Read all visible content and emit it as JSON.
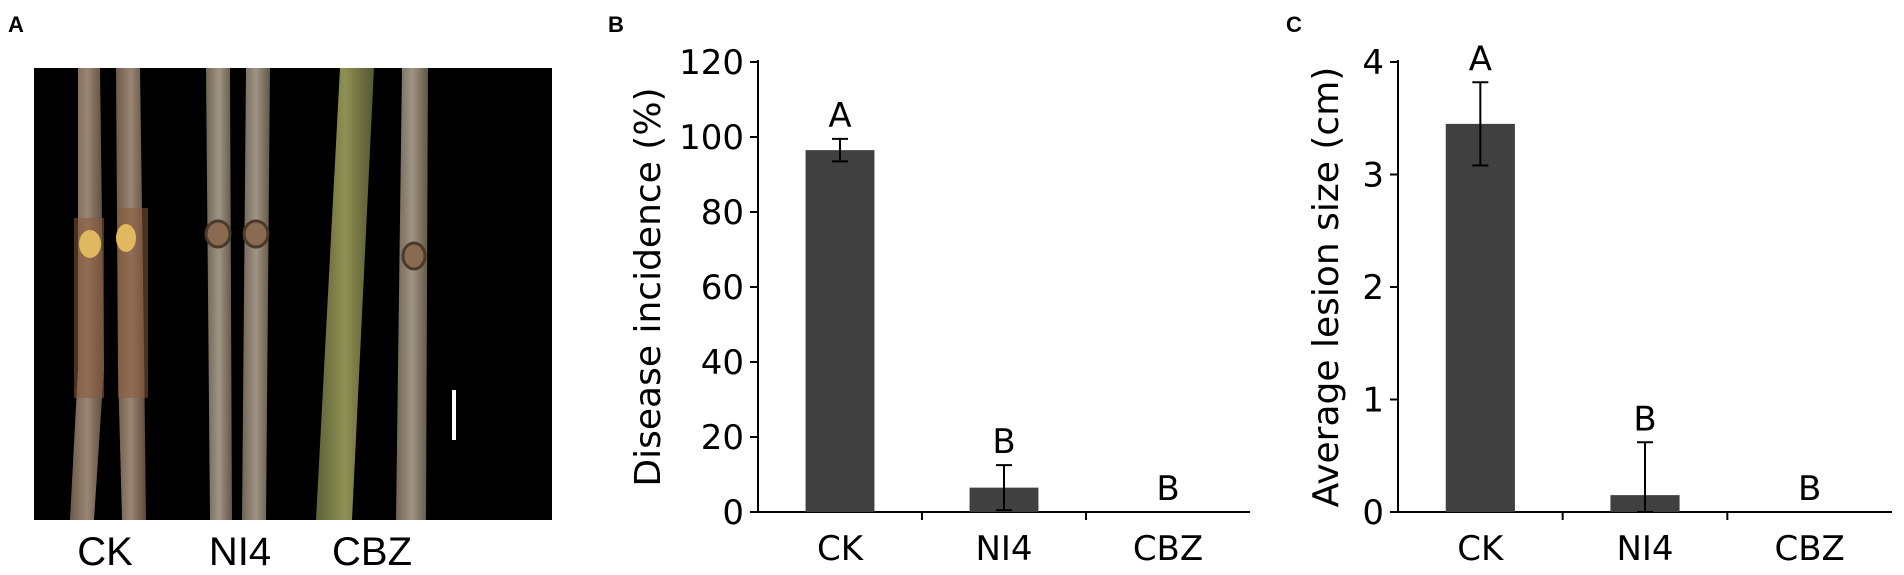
{
  "panels": {
    "a": {
      "letter": "A",
      "labels": [
        "CK",
        "NI4",
        "CBZ"
      ]
    },
    "b": {
      "letter": "B"
    },
    "c": {
      "letter": "C"
    }
  },
  "colors": {
    "bar": "#404040",
    "axis": "#000000"
  },
  "chart_data": [
    {
      "type": "bar",
      "title": "",
      "xlabel": "",
      "ylabel": "Disease incidence (%)",
      "categories": [
        "CK",
        "NI4",
        "CBZ"
      ],
      "values": [
        96.5,
        6.5,
        0
      ],
      "errors": [
        3,
        6,
        0
      ],
      "significance": [
        "A",
        "B",
        "B"
      ],
      "ylim": [
        0,
        120
      ],
      "yticks": [
        "0",
        "20",
        "40",
        "60",
        "80",
        "100",
        "120"
      ],
      "grid": false
    },
    {
      "type": "bar",
      "title": "",
      "xlabel": "",
      "ylabel": "Average lesion size (cm)",
      "categories": [
        "CK",
        "NI4",
        "CBZ"
      ],
      "values": [
        3.45,
        0.15,
        0
      ],
      "errors": [
        0.37,
        0.47,
        0
      ],
      "significance": [
        "A",
        "B",
        "B"
      ],
      "ylim": [
        0,
        4
      ],
      "yticks": [
        "0",
        "1",
        "2",
        "3",
        "4"
      ],
      "grid": false
    }
  ]
}
